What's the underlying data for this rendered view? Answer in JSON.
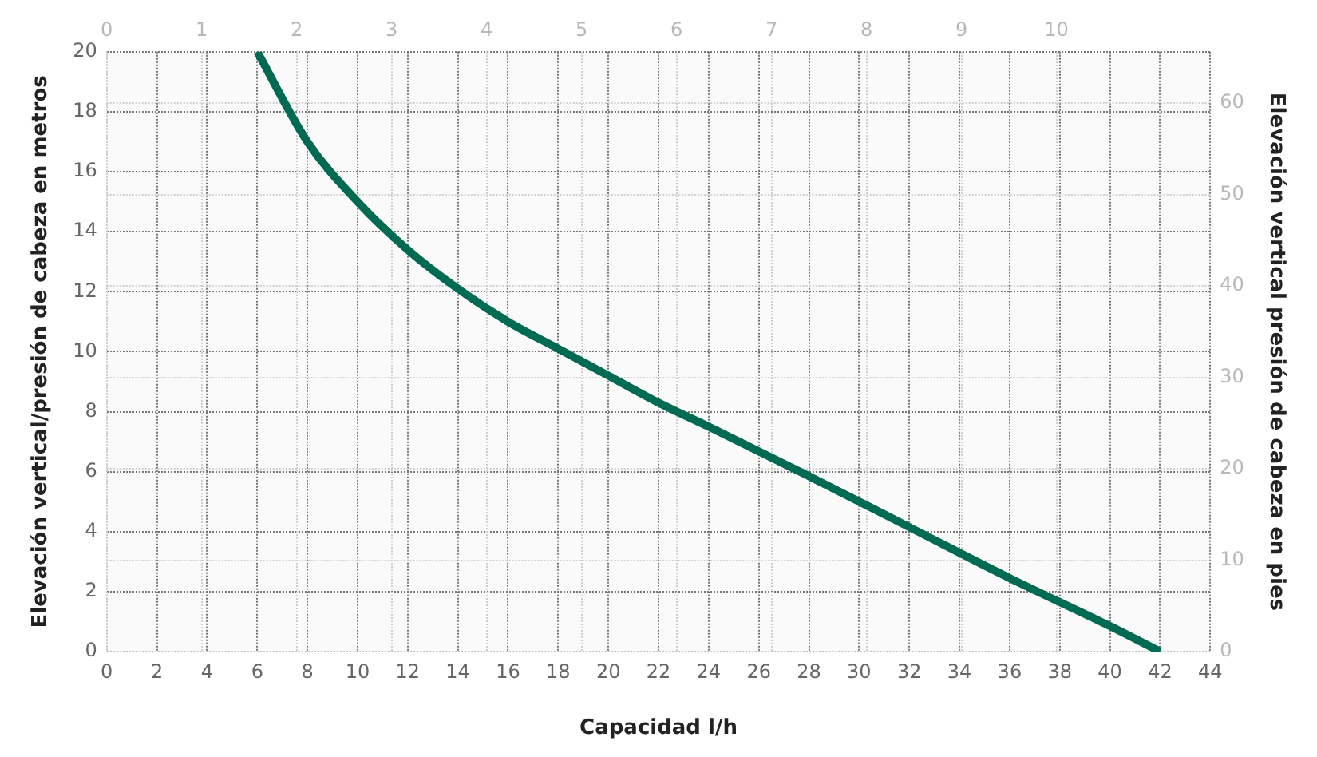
{
  "chart_data": {
    "type": "line",
    "xlabel": "Capacidad l/h",
    "ylabel": "Elevación vertical/presión de cabeza en metros",
    "y2label": "Elevación vertical presión de cabeza en pies",
    "x": [
      6,
      8,
      10,
      12,
      14,
      16,
      18,
      20,
      22,
      24,
      28,
      32,
      36,
      40,
      42
    ],
    "series": [
      {
        "color": "#006a52",
        "values": [
          20,
          17,
          15,
          13.4,
          12.1,
          11,
          10.1,
          9.2,
          8.3,
          7.5,
          5.85,
          4.15,
          2.45,
          0.85,
          0
        ]
      }
    ],
    "xlim": [
      0,
      44
    ],
    "xticks": [
      0,
      2,
      4,
      6,
      8,
      10,
      12,
      14,
      16,
      18,
      20,
      22,
      24,
      26,
      28,
      30,
      32,
      34,
      36,
      38,
      40,
      42,
      44
    ],
    "x2lim": [
      0,
      11.62
    ],
    "x2ticks": [
      0,
      1,
      2,
      3,
      4,
      5,
      6,
      7,
      8,
      9,
      10
    ],
    "ylim": [
      0,
      20
    ],
    "yticks": [
      0,
      2,
      4,
      6,
      8,
      10,
      12,
      14,
      16,
      18,
      20
    ],
    "y2lim": [
      0,
      65.62
    ],
    "y2ticks": [
      0,
      10,
      20,
      30,
      40,
      50,
      60
    ],
    "grid": true,
    "marker": "none",
    "line_style": "solid"
  }
}
